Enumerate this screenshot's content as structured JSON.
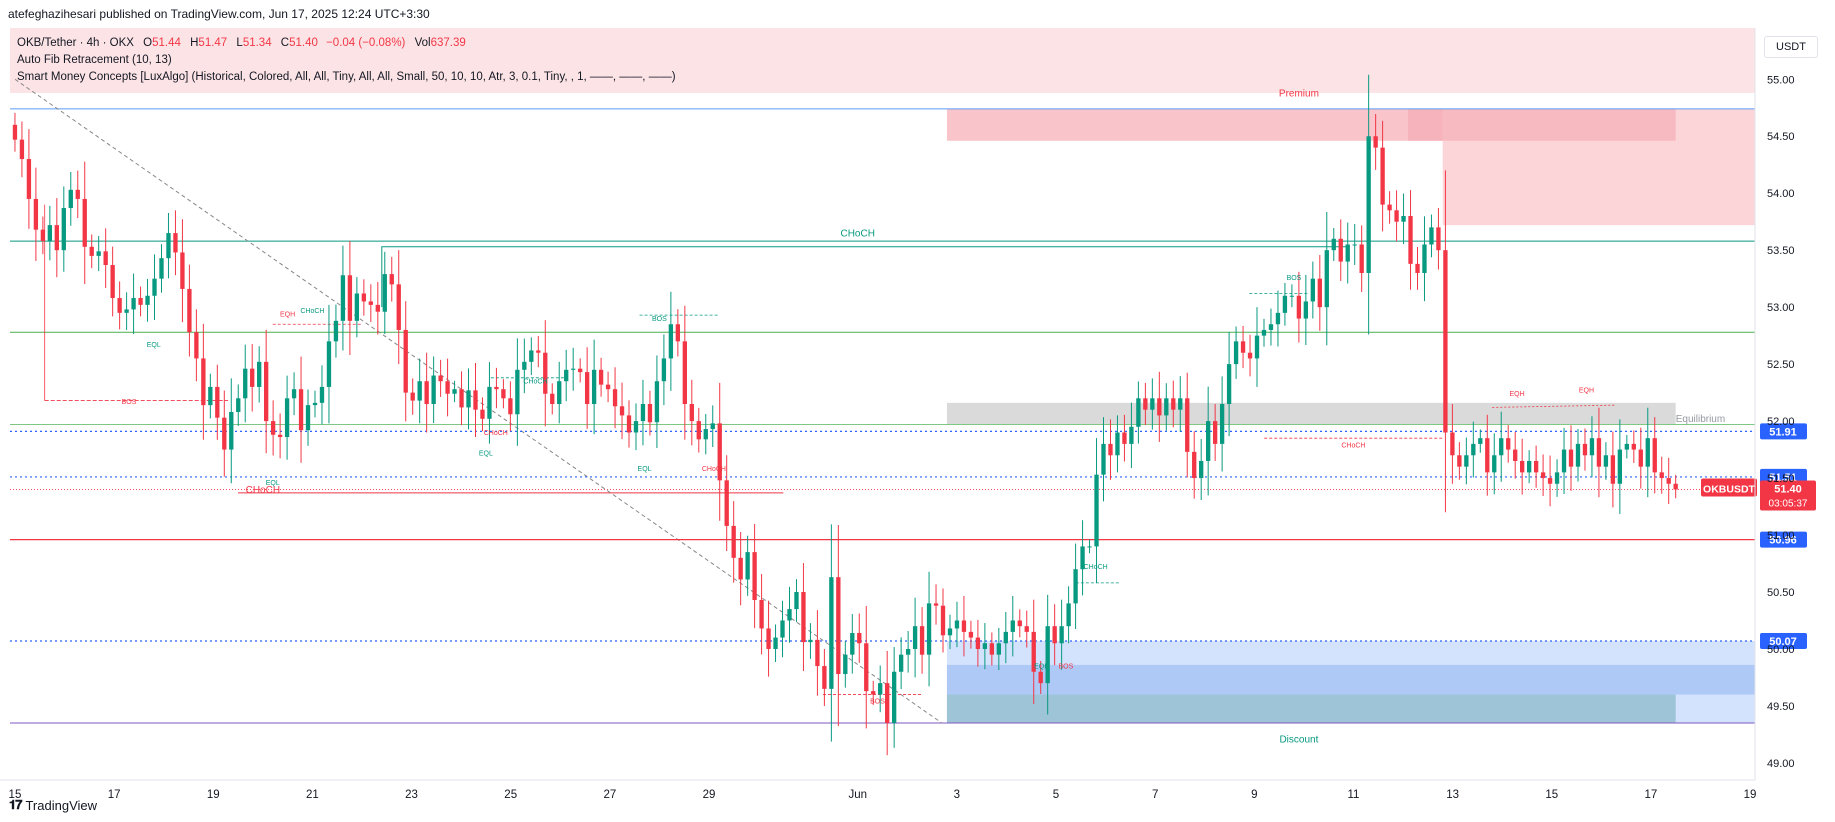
{
  "header": {
    "publisher_line": "atefeghazihesari published on TradingView.com, Jun 17, 2025 12:24 UTC+3:30"
  },
  "legend": {
    "symbol": "OKB/Tether · 4h · OKX",
    "o_label": "O",
    "o": "51.44",
    "h_label": "H",
    "h": "51.47",
    "l_label": "L",
    "l": "51.34",
    "c_label": "C",
    "c": "51.40",
    "change": "−0.04 (−0.08%)",
    "vol_label": "Vol",
    "vol": "637.39",
    "indicator1": "Auto Fib Retracement (10, 13)",
    "indicator2": "Smart Money Concepts [LuxAlgo] (Historical, Colored, All, All, Tiny, All, All, Small, 50, 10, 10, Atr, 3, 0.1, Tiny, , 1, ——, ——, ——)"
  },
  "currency_unit": "USDT",
  "footer": {
    "brand": "TradingView"
  },
  "colors": {
    "up": "#089981",
    "down": "#f23645",
    "blue": "#2962ff",
    "premium_zone": "#fce4e6",
    "discount_zone": "#c8dcfc"
  },
  "chart_data": {
    "type": "candlestick",
    "symbol": "OKB/Tether",
    "timeframe": "4h",
    "y_range": [
      48.85,
      55.45
    ],
    "y_ticks": [
      "49.00",
      "49.50",
      "50.00",
      "50.50",
      "51.00",
      "51.50",
      "52.00",
      "52.50",
      "53.00",
      "53.50",
      "54.00",
      "54.50",
      "55.00"
    ],
    "x_range_days": [
      -0.1,
      35.1
    ],
    "x_ticks": [
      {
        "t": 0,
        "label": "15"
      },
      {
        "t": 2,
        "label": "17"
      },
      {
        "t": 4,
        "label": "19"
      },
      {
        "t": 6,
        "label": "21"
      },
      {
        "t": 8,
        "label": "23"
      },
      {
        "t": 10,
        "label": "25"
      },
      {
        "t": 12,
        "label": "27"
      },
      {
        "t": 14,
        "label": "29"
      },
      {
        "t": 17,
        "label": "Jun"
      },
      {
        "t": 19,
        "label": "3"
      },
      {
        "t": 21,
        "label": "5"
      },
      {
        "t": 23,
        "label": "7"
      },
      {
        "t": 25,
        "label": "9"
      },
      {
        "t": 27,
        "label": "11"
      },
      {
        "t": 29,
        "label": "13"
      },
      {
        "t": 31,
        "label": "15"
      },
      {
        "t": 33,
        "label": "17"
      },
      {
        "t": 35,
        "label": "19"
      }
    ],
    "closes": [
      54.47,
      54.3,
      53.95,
      53.68,
      53.58,
      53.72,
      53.5,
      53.87,
      54.03,
      53.95,
      53.53,
      53.45,
      53.49,
      53.37,
      53.08,
      52.95,
      52.98,
      53.08,
      53.02,
      53.1,
      53.25,
      53.43,
      53.65,
      53.48,
      53.16,
      52.78,
      52.55,
      52.14,
      52.3,
      52.03,
      51.75,
      52.08,
      52.2,
      52.46,
      52.3,
      52.52,
      52.0,
      51.88,
      51.86,
      52.2,
      52.28,
      51.92,
      52.14,
      52.16,
      52.3,
      52.7,
      52.88,
      53.28,
      52.88,
      53.12,
      53.05,
      53.02,
      52.96,
      53.29,
      53.2,
      52.8,
      52.25,
      52.18,
      52.35,
      52.15,
      52.4,
      52.35,
      52.24,
      52.28,
      52.12,
      52.27,
      52.1,
      52.02,
      52.3,
      52.28,
      52.2,
      52.06,
      52.45,
      52.52,
      52.62,
      52.6,
      52.24,
      52.15,
      52.35,
      52.45,
      52.46,
      52.43,
      52.15,
      52.45,
      52.32,
      52.28,
      52.13,
      52.05,
      51.9,
      52.0,
      52.15,
      51.99,
      52.35,
      52.55,
      52.85,
      52.7,
      52.15,
      52.0,
      51.84,
      51.93,
      51.98,
      51.48,
      51.08,
      50.8,
      50.61,
      50.85,
      50.43,
      50.18,
      50.0,
      50.1,
      50.25,
      50.35,
      50.5,
      50.06,
      50.08,
      49.85,
      49.65,
      50.63,
      49.78,
      49.95,
      50.14,
      50.05,
      49.63,
      49.6,
      49.7,
      49.35,
      49.8,
      49.95,
      50.0,
      50.2,
      49.95,
      50.4,
      50.38,
      50.12,
      50.18,
      50.25,
      50.15,
      50.1,
      50.0,
      50.05,
      49.95,
      50.05,
      50.15,
      50.25,
      50.2,
      50.15,
      49.8,
      49.7,
      50.2,
      50.05,
      50.2,
      50.4,
      50.7,
      50.9,
      50.9,
      51.53,
      51.8,
      51.7,
      51.9,
      51.8,
      51.95,
      52.2,
      52.1,
      52.2,
      52.05,
      52.2,
      52.1,
      52.2,
      51.73,
      51.5,
      51.65,
      52.0,
      51.8,
      52.15,
      52.5,
      52.7,
      52.6,
      52.55,
      52.75,
      52.8,
      52.85,
      52.95,
      53.1,
      53.1,
      52.9,
      53.05,
      53.25,
      53.0,
      53.5,
      53.6,
      53.4,
      53.55,
      53.55,
      53.3,
      54.5,
      54.4,
      53.9,
      53.85,
      53.75,
      53.8,
      53.38,
      53.3,
      53.55,
      53.7,
      53.5,
      51.9,
      51.7,
      51.6,
      51.7,
      51.8,
      51.85,
      51.55,
      51.7,
      51.85,
      51.75,
      51.65,
      51.55,
      51.65,
      51.55,
      51.5,
      51.45,
      51.55,
      51.75,
      51.6,
      51.8,
      51.7,
      51.85,
      51.6,
      51.7,
      51.45,
      51.75,
      51.8,
      51.75,
      51.6,
      51.85,
      51.55,
      51.5,
      51.45,
      51.4
    ],
    "levels": [
      {
        "name": "level-51.91",
        "value": 51.91,
        "label": "51.91"
      },
      {
        "name": "level-51.51",
        "value": 51.51,
        "label": "51.51"
      },
      {
        "name": "level-50.96",
        "value": 50.96,
        "label": "50.96"
      },
      {
        "name": "level-50.07",
        "value": 50.07,
        "label": "50.07"
      }
    ],
    "last_price": {
      "symbol": "OKBUSDT",
      "price": "51.40",
      "countdown": "03:05:37"
    },
    "zone_labels": {
      "premium": "Premium",
      "equilibrium": "Equilibrium",
      "discount": "Discount"
    },
    "annotations": [
      {
        "text": "CHoCH",
        "t": 17,
        "y": 53.62,
        "color": "#089981",
        "size": 10
      },
      {
        "text": "CHoCH",
        "t": 5,
        "y": 51.37,
        "color": "#f23645",
        "size": 10
      },
      {
        "text": "BOS",
        "t": 2.3,
        "y": 52.15,
        "color": "#f23645",
        "size": 7
      },
      {
        "text": "EQL",
        "t": 2.8,
        "y": 52.65,
        "color": "#089981",
        "size": 7
      },
      {
        "text": "EQH",
        "t": 5.5,
        "y": 52.92,
        "color": "#f23645",
        "size": 7
      },
      {
        "text": "CHoCH",
        "t": 6.0,
        "y": 52.95,
        "color": "#089981",
        "size": 7
      },
      {
        "text": "EQL",
        "t": 5.2,
        "y": 51.44,
        "color": "#089981",
        "size": 7
      },
      {
        "text": "CHoCH",
        "t": 10.5,
        "y": 52.33,
        "color": "#089981",
        "size": 7
      },
      {
        "text": "CHoCH",
        "t": 9.7,
        "y": 51.88,
        "color": "#f23645",
        "size": 7
      },
      {
        "text": "EQL",
        "t": 9.5,
        "y": 51.7,
        "color": "#089981",
        "size": 7
      },
      {
        "text": "BOS",
        "t": 13.0,
        "y": 52.88,
        "color": "#089981",
        "size": 7
      },
      {
        "text": "EQL",
        "t": 12.7,
        "y": 51.56,
        "color": "#089981",
        "size": 7
      },
      {
        "text": "CHoCH",
        "t": 14.1,
        "y": 51.56,
        "color": "#f23645",
        "size": 7
      },
      {
        "text": "BOS",
        "t": 17.4,
        "y": 49.52,
        "color": "#f23645",
        "size": 7
      },
      {
        "text": "EQL",
        "t": 20.7,
        "y": 49.83,
        "color": "#089981",
        "size": 7
      },
      {
        "text": "BOS",
        "t": 21.2,
        "y": 49.83,
        "color": "#f23645",
        "size": 7
      },
      {
        "text": "CHoCH",
        "t": 21.8,
        "y": 50.7,
        "color": "#089981",
        "size": 7
      },
      {
        "text": "BOS",
        "t": 25.8,
        "y": 53.24,
        "color": "#089981",
        "size": 7
      },
      {
        "text": "CHoCH",
        "t": 27.0,
        "y": 51.77,
        "color": "#f23645",
        "size": 7
      },
      {
        "text": "EQH",
        "t": 30.3,
        "y": 52.22,
        "color": "#f23645",
        "size": 7
      },
      {
        "text": "EQH",
        "t": 31.7,
        "y": 52.25,
        "color": "#f23645",
        "size": 7
      }
    ]
  }
}
